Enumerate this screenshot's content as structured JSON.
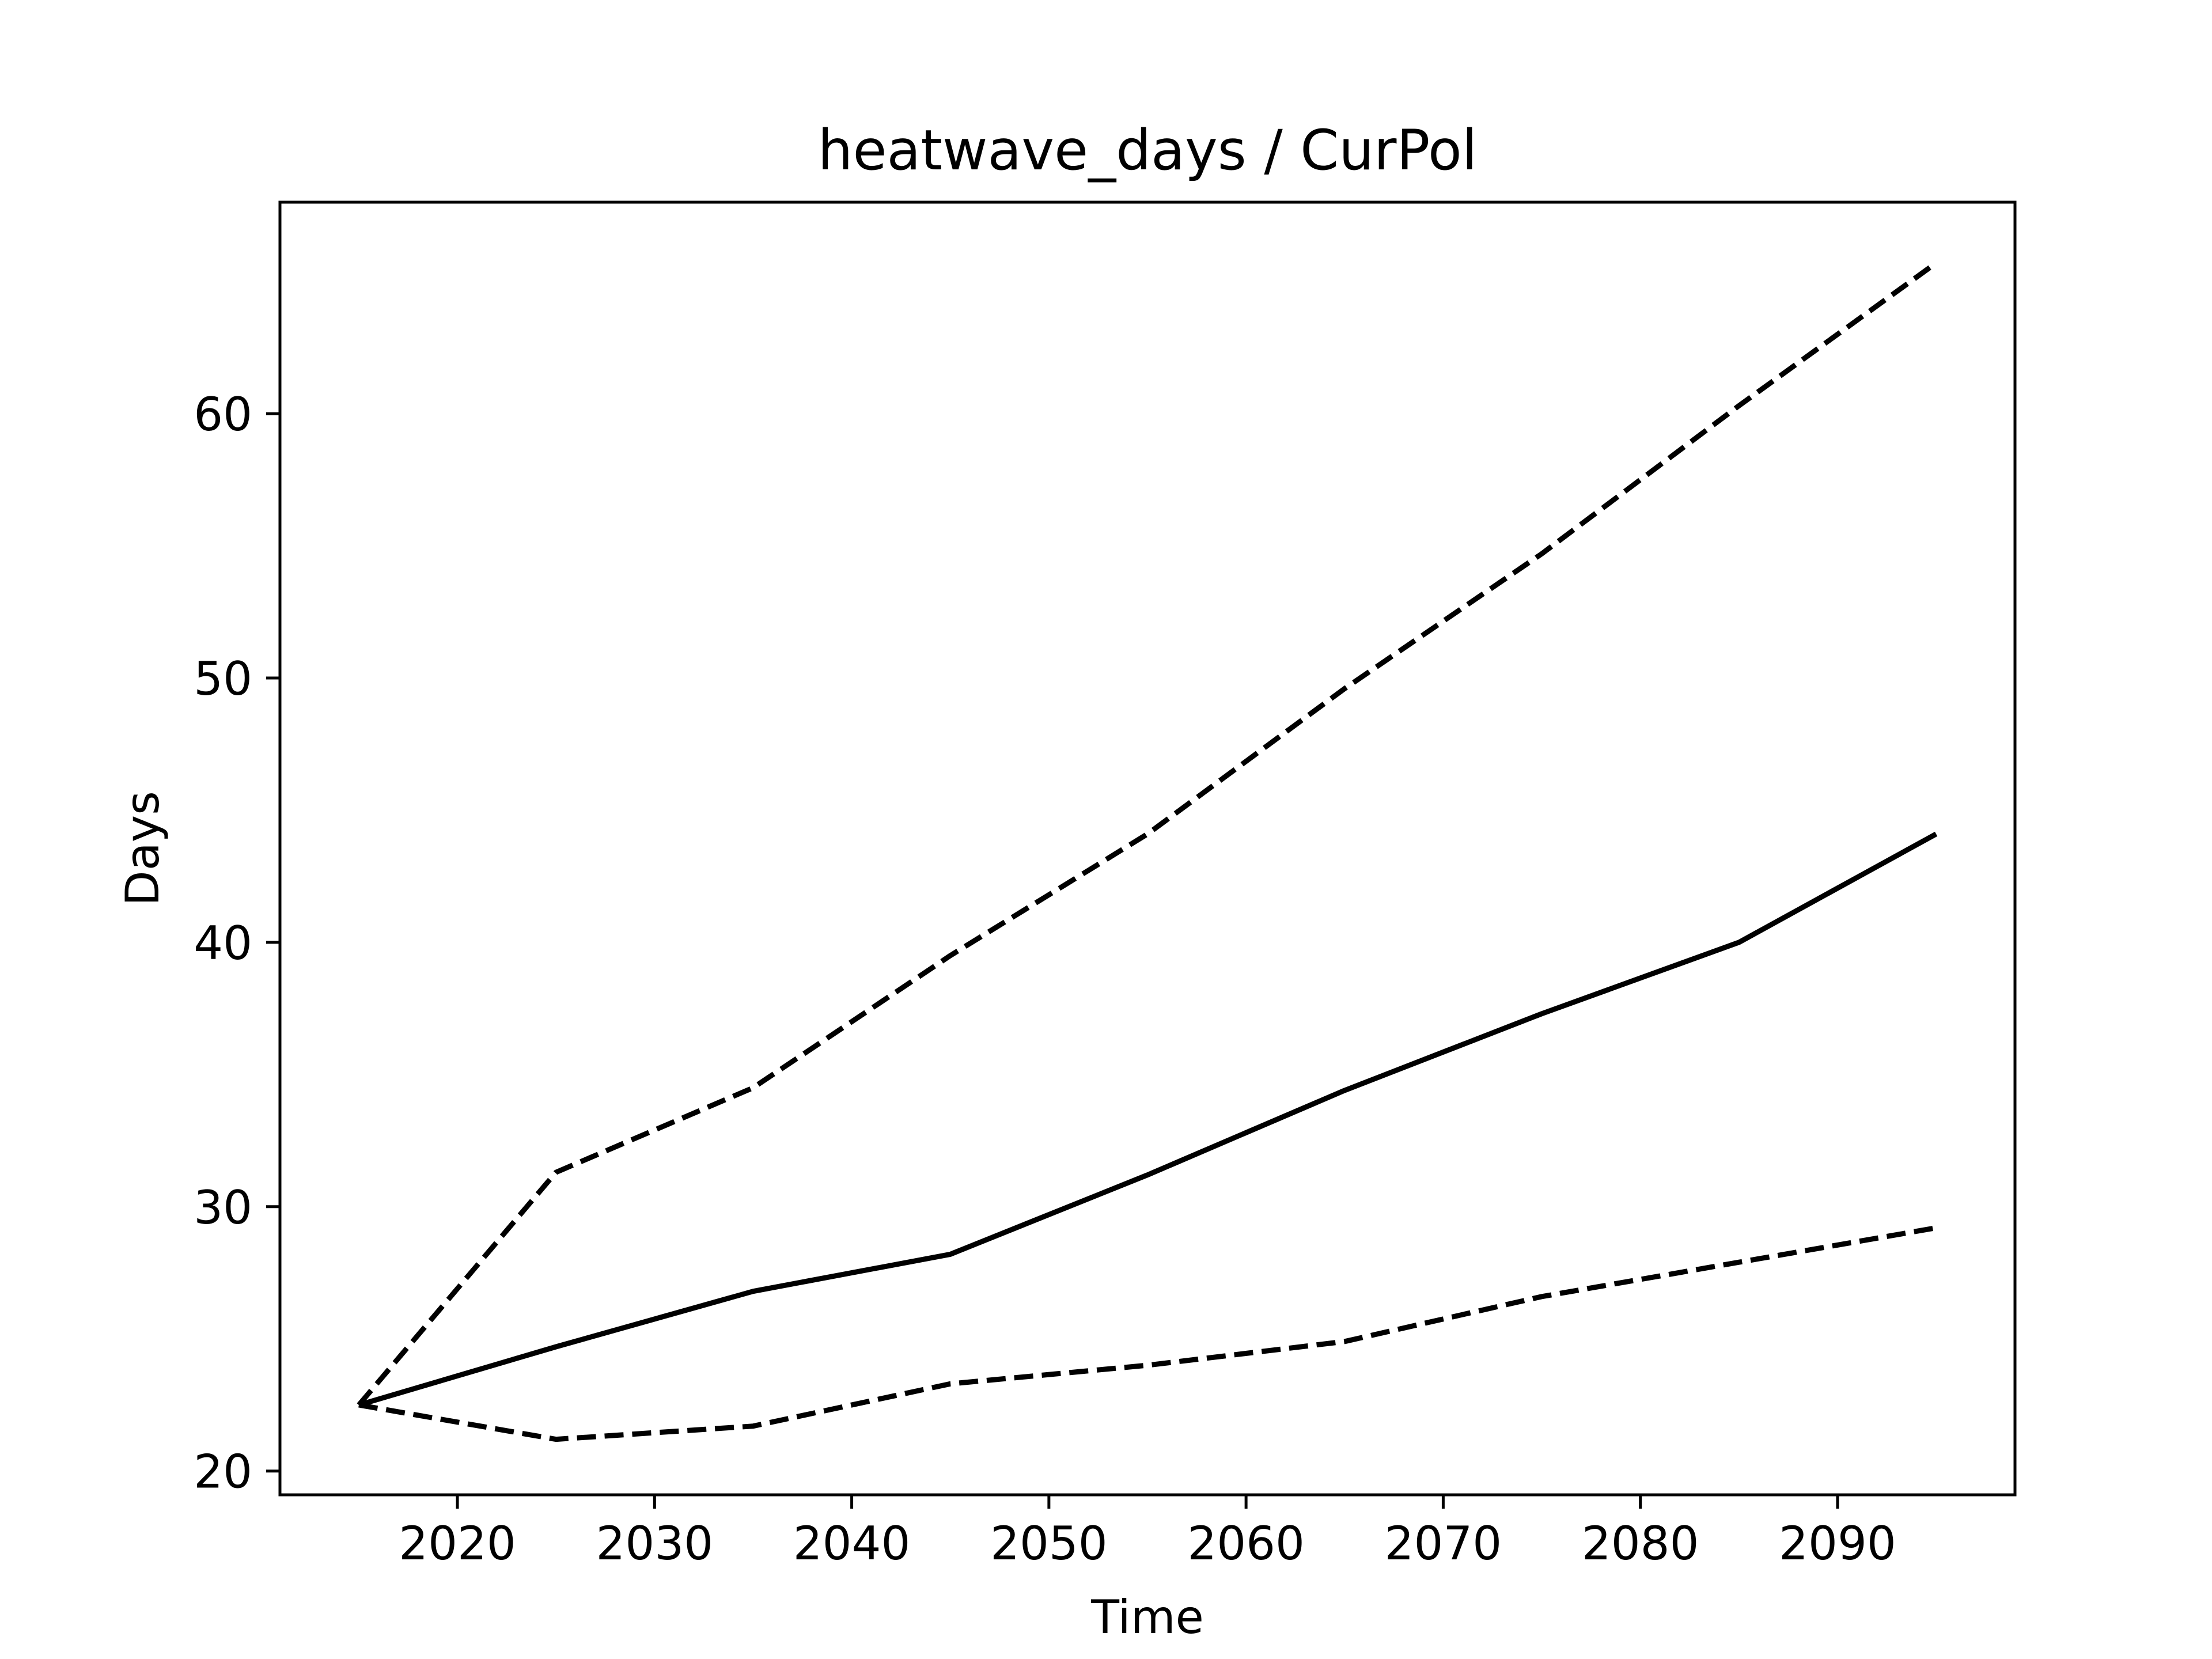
{
  "chart_data": {
    "type": "line",
    "title": "heatwave_days / CurPol",
    "xlabel": "Time",
    "ylabel": "Days",
    "xlim": [
      2011,
      2099
    ],
    "ylim": [
      19.1,
      68.0
    ],
    "xticks": [
      2020,
      2030,
      2040,
      2050,
      2060,
      2070,
      2080,
      2090
    ],
    "yticks": [
      20,
      30,
      40,
      50,
      60
    ],
    "grid": false,
    "line_color": "#000000",
    "series": [
      {
        "style": "solid",
        "x": [
          2015,
          2025,
          2035,
          2045,
          2055,
          2065,
          2075,
          2085,
          2095
        ],
        "y": [
          22.5,
          24.7,
          26.8,
          28.2,
          31.2,
          34.4,
          37.3,
          40.0,
          44.1
        ]
      },
      {
        "style": "dashed",
        "x": [
          2015,
          2025,
          2035,
          2045,
          2055,
          2065,
          2075,
          2085,
          2095
        ],
        "y": [
          22.5,
          31.3,
          34.5,
          39.5,
          44.1,
          49.6,
          54.7,
          60.3,
          65.7
        ]
      },
      {
        "style": "dashed",
        "x": [
          2015,
          2025,
          2035,
          2045,
          2055,
          2065,
          2075,
          2085,
          2095
        ],
        "y": [
          22.5,
          21.2,
          21.7,
          23.3,
          24.0,
          24.9,
          26.6,
          27.9,
          29.2
        ]
      }
    ]
  }
}
